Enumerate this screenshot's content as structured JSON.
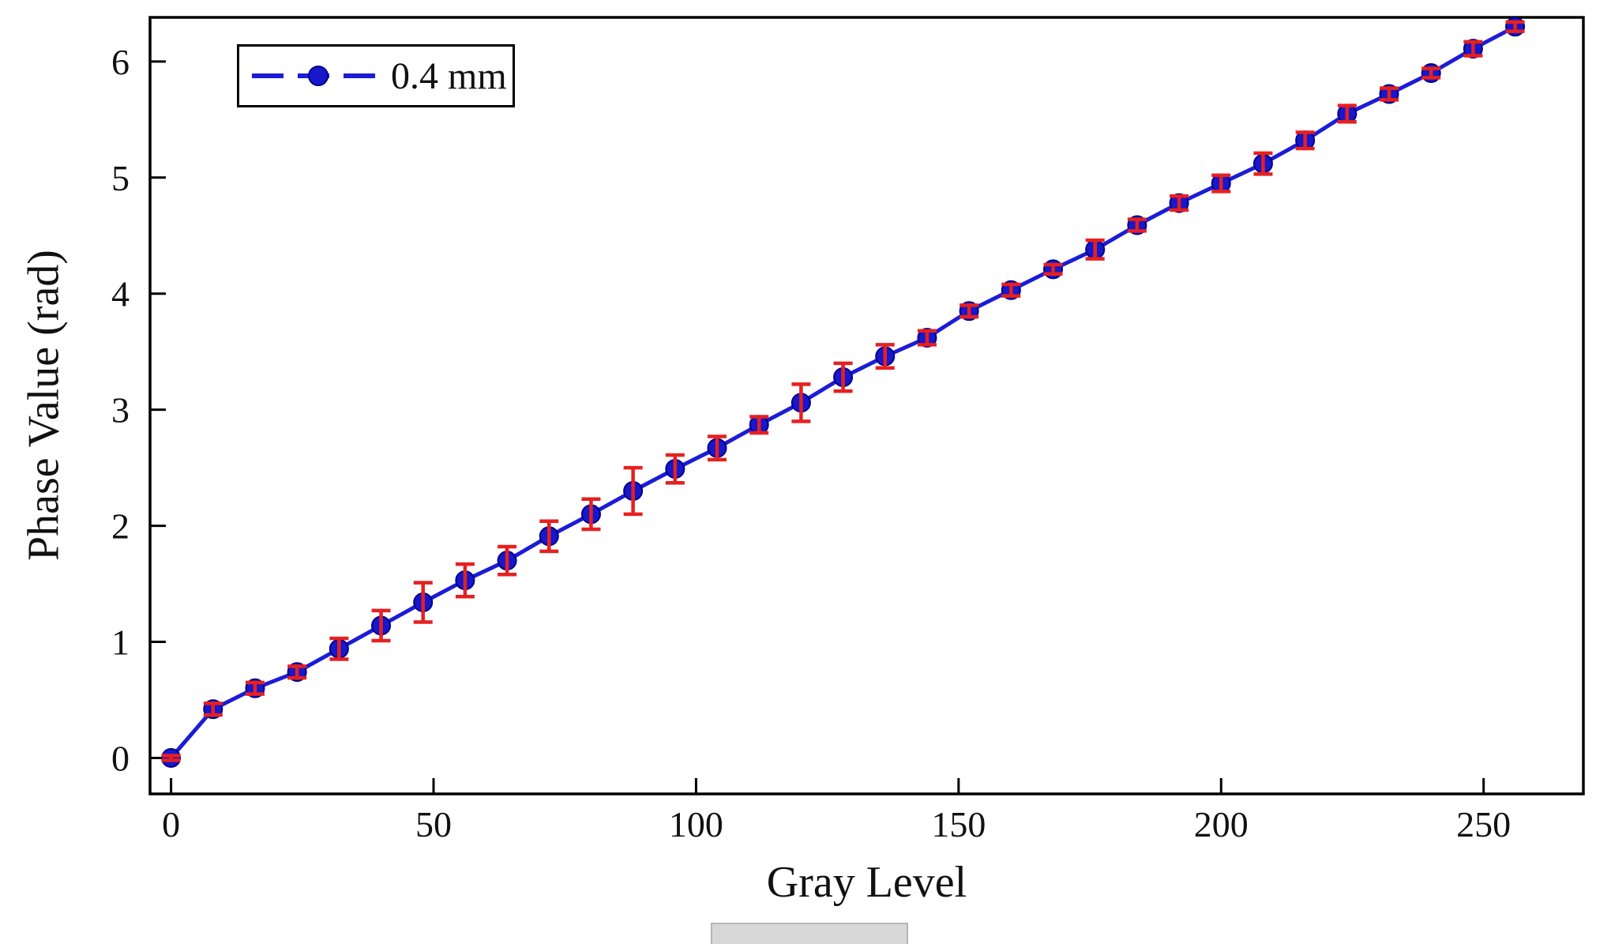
{
  "chart_data": {
    "type": "line",
    "title": "",
    "xlabel": "Gray Level",
    "ylabel": "Phase Value (rad)",
    "xlim": [
      -4,
      269
    ],
    "ylim": [
      -0.31,
      6.38
    ],
    "x_ticks": [
      0,
      50,
      100,
      150,
      200,
      250
    ],
    "y_ticks": [
      0,
      1,
      2,
      3,
      4,
      5,
      6
    ],
    "grid": false,
    "legend": {
      "position": "top-left",
      "entries": [
        {
          "label": "0.4 mm"
        }
      ]
    },
    "colors": {
      "line": "#1c1cd6",
      "marker_fill": "#1717cc",
      "marker_edge": "#00008b",
      "error_bar": "#e62020",
      "frame": "#000000",
      "text": "#111111"
    },
    "series": [
      {
        "name": "0.4 mm",
        "x": [
          0,
          8,
          16,
          24,
          32,
          40,
          48,
          56,
          64,
          72,
          80,
          88,
          96,
          104,
          112,
          120,
          128,
          136,
          144,
          152,
          160,
          168,
          176,
          184,
          192,
          200,
          208,
          216,
          224,
          232,
          240,
          248,
          256
        ],
        "y": [
          0.0,
          0.42,
          0.6,
          0.74,
          0.94,
          1.14,
          1.34,
          1.53,
          1.7,
          1.91,
          2.1,
          2.3,
          2.49,
          2.67,
          2.87,
          3.06,
          3.28,
          3.46,
          3.62,
          3.85,
          4.03,
          4.21,
          4.38,
          4.59,
          4.78,
          4.95,
          5.12,
          5.32,
          5.55,
          5.72,
          5.9,
          6.11,
          6.3
        ],
        "yerr": [
          0.02,
          0.05,
          0.05,
          0.05,
          0.09,
          0.13,
          0.17,
          0.14,
          0.12,
          0.13,
          0.13,
          0.2,
          0.12,
          0.1,
          0.07,
          0.16,
          0.12,
          0.1,
          0.06,
          0.05,
          0.05,
          0.04,
          0.08,
          0.05,
          0.06,
          0.07,
          0.09,
          0.07,
          0.07,
          0.05,
          0.04,
          0.06,
          0.04
        ]
      }
    ]
  }
}
